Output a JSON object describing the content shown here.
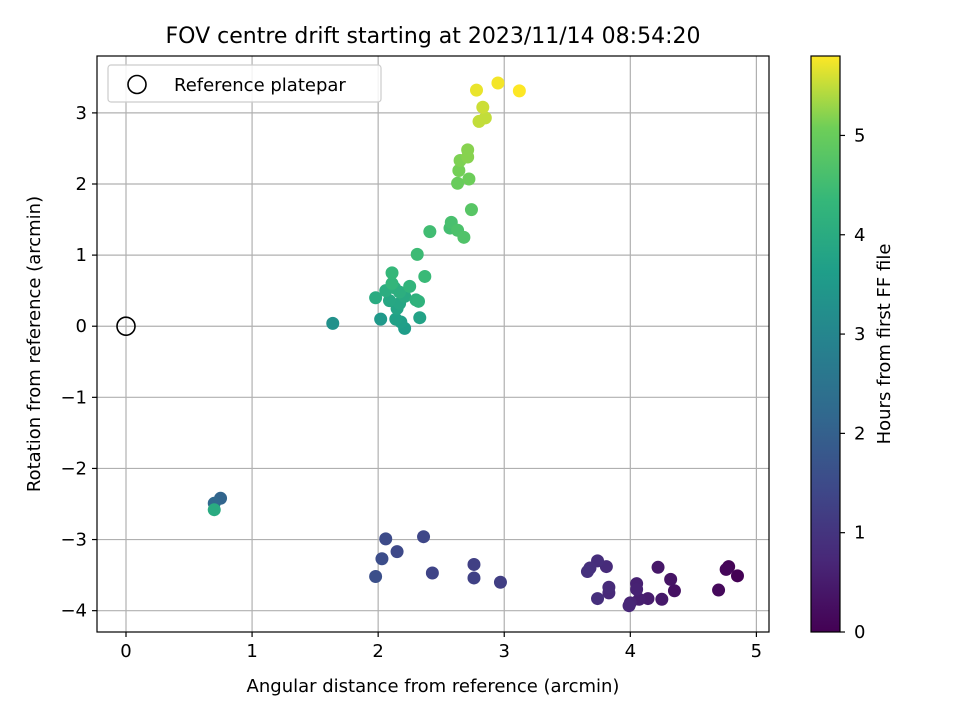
{
  "chart_data": {
    "type": "scatter",
    "title": "FOV centre drift starting at 2023/11/14 08:54:20",
    "xlabel": "Angular distance from reference (arcmin)",
    "ylabel": "Rotation from reference (arcmin)",
    "xlim": [
      -0.23,
      5.1
    ],
    "ylim": [
      -4.3,
      3.8
    ],
    "xticks": [
      0,
      1,
      2,
      3,
      4,
      5
    ],
    "yticks": [
      -4,
      -3,
      -2,
      -1,
      0,
      1,
      2,
      3
    ],
    "xtick_labels": [
      "0",
      "1",
      "2",
      "3",
      "4",
      "5"
    ],
    "ytick_labels": [
      "−4",
      "−3",
      "−2",
      "−1",
      "0",
      "1",
      "2",
      "3"
    ],
    "grid": true,
    "legend": {
      "position": "top-left",
      "label": "Reference platepar"
    },
    "reference_point": {
      "x": 0,
      "y": 0
    },
    "colorbar": {
      "label": "Hours from first FF file",
      "colormap": "viridis",
      "range": [
        0,
        5.8
      ],
      "ticks": [
        0,
        1,
        2,
        3,
        4,
        5
      ],
      "tick_labels": [
        "0",
        "1",
        "2",
        "3",
        "4",
        "5"
      ]
    },
    "points": [
      {
        "x": 4.85,
        "y": -3.51,
        "c": 0.0
      },
      {
        "x": 4.78,
        "y": -3.38,
        "c": 0.05
      },
      {
        "x": 4.76,
        "y": -3.42,
        "c": 0.1
      },
      {
        "x": 4.7,
        "y": -3.71,
        "c": 0.15
      },
      {
        "x": 4.35,
        "y": -3.72,
        "c": 0.3
      },
      {
        "x": 4.32,
        "y": -3.56,
        "c": 0.35
      },
      {
        "x": 4.22,
        "y": -3.39,
        "c": 0.4
      },
      {
        "x": 4.25,
        "y": -3.84,
        "c": 0.45
      },
      {
        "x": 4.14,
        "y": -3.83,
        "c": 0.5
      },
      {
        "x": 4.07,
        "y": -3.84,
        "c": 0.55
      },
      {
        "x": 4.05,
        "y": -3.62,
        "c": 0.6
      },
      {
        "x": 4.05,
        "y": -3.7,
        "c": 0.62
      },
      {
        "x": 4.0,
        "y": -3.89,
        "c": 0.65
      },
      {
        "x": 3.99,
        "y": -3.93,
        "c": 0.7
      },
      {
        "x": 3.83,
        "y": -3.75,
        "c": 0.75
      },
      {
        "x": 3.83,
        "y": -3.67,
        "c": 0.78
      },
      {
        "x": 3.81,
        "y": -3.38,
        "c": 0.8
      },
      {
        "x": 3.74,
        "y": -3.3,
        "c": 0.85
      },
      {
        "x": 3.74,
        "y": -3.83,
        "c": 0.88
      },
      {
        "x": 3.68,
        "y": -3.4,
        "c": 0.9
      },
      {
        "x": 3.66,
        "y": -3.45,
        "c": 0.92
      },
      {
        "x": 2.97,
        "y": -3.6,
        "c": 1.2
      },
      {
        "x": 2.76,
        "y": -3.35,
        "c": 1.25
      },
      {
        "x": 2.76,
        "y": -3.54,
        "c": 1.28
      },
      {
        "x": 2.43,
        "y": -3.47,
        "c": 1.35
      },
      {
        "x": 2.36,
        "y": -2.96,
        "c": 1.4
      },
      {
        "x": 2.15,
        "y": -3.17,
        "c": 1.45
      },
      {
        "x": 2.06,
        "y": -2.99,
        "c": 1.5
      },
      {
        "x": 2.03,
        "y": -3.27,
        "c": 1.55
      },
      {
        "x": 1.98,
        "y": -3.52,
        "c": 1.6
      },
      {
        "x": 0.75,
        "y": -2.42,
        "c": 2.1
      },
      {
        "x": 0.7,
        "y": -2.49,
        "c": 2.2
      },
      {
        "x": 0.7,
        "y": -2.58,
        "c": 4.0
      },
      {
        "x": 1.64,
        "y": 0.04,
        "c": 3.3
      },
      {
        "x": 2.02,
        "y": 0.1,
        "c": 3.5
      },
      {
        "x": 2.21,
        "y": -0.03,
        "c": 3.6
      },
      {
        "x": 2.18,
        "y": 0.06,
        "c": 3.65
      },
      {
        "x": 2.14,
        "y": 0.1,
        "c": 3.7
      },
      {
        "x": 2.33,
        "y": 0.12,
        "c": 3.75
      },
      {
        "x": 2.15,
        "y": 0.25,
        "c": 3.8
      },
      {
        "x": 2.17,
        "y": 0.32,
        "c": 3.85
      },
      {
        "x": 2.09,
        "y": 0.36,
        "c": 3.9
      },
      {
        "x": 2.21,
        "y": 0.42,
        "c": 3.95
      },
      {
        "x": 1.98,
        "y": 0.4,
        "c": 4.0
      },
      {
        "x": 2.06,
        "y": 0.5,
        "c": 4.05
      },
      {
        "x": 2.13,
        "y": 0.54,
        "c": 4.1
      },
      {
        "x": 2.17,
        "y": 0.48,
        "c": 4.1
      },
      {
        "x": 2.3,
        "y": 0.37,
        "c": 4.15
      },
      {
        "x": 2.32,
        "y": 0.35,
        "c": 4.2
      },
      {
        "x": 2.25,
        "y": 0.56,
        "c": 4.25
      },
      {
        "x": 2.11,
        "y": 0.6,
        "c": 4.3
      },
      {
        "x": 2.11,
        "y": 0.75,
        "c": 4.35
      },
      {
        "x": 2.37,
        "y": 0.7,
        "c": 4.4
      },
      {
        "x": 2.31,
        "y": 1.01,
        "c": 4.45
      },
      {
        "x": 2.41,
        "y": 1.33,
        "c": 4.5
      },
      {
        "x": 2.57,
        "y": 1.38,
        "c": 4.55
      },
      {
        "x": 2.58,
        "y": 1.46,
        "c": 4.6
      },
      {
        "x": 2.63,
        "y": 1.35,
        "c": 4.65
      },
      {
        "x": 2.68,
        "y": 1.25,
        "c": 4.7
      },
      {
        "x": 2.74,
        "y": 1.64,
        "c": 4.8
      },
      {
        "x": 2.63,
        "y": 2.01,
        "c": 5.0
      },
      {
        "x": 2.72,
        "y": 2.07,
        "c": 5.05
      },
      {
        "x": 2.64,
        "y": 2.19,
        "c": 5.1
      },
      {
        "x": 2.65,
        "y": 2.33,
        "c": 5.15
      },
      {
        "x": 2.71,
        "y": 2.38,
        "c": 5.2
      },
      {
        "x": 2.71,
        "y": 2.48,
        "c": 5.2
      },
      {
        "x": 2.8,
        "y": 2.88,
        "c": 5.5
      },
      {
        "x": 2.85,
        "y": 2.93,
        "c": 5.5
      },
      {
        "x": 2.83,
        "y": 3.08,
        "c": 5.55
      },
      {
        "x": 2.78,
        "y": 3.32,
        "c": 5.7
      },
      {
        "x": 2.95,
        "y": 3.42,
        "c": 5.75
      },
      {
        "x": 3.12,
        "y": 3.31,
        "c": 5.8
      }
    ]
  }
}
